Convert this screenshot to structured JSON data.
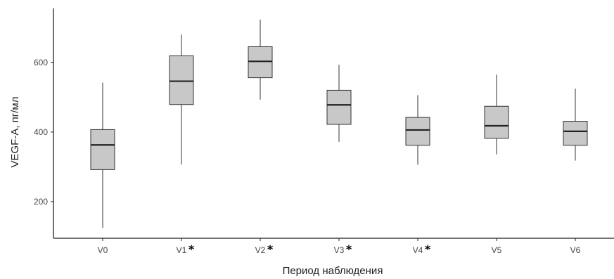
{
  "chart_data": {
    "type": "boxplot",
    "xlabel": "Период наблюдения",
    "ylabel": "VEGF-A, пг/мл",
    "ylim": [
      95,
      755
    ],
    "yticks": [
      200,
      400,
      600
    ],
    "grid": false,
    "box_color": "#c8c8c8",
    "categories": [
      {
        "label": "V0",
        "marker": "",
        "min": 125,
        "q1": 292,
        "median": 363,
        "q3": 407,
        "max": 542
      },
      {
        "label": "V1",
        "marker": "*",
        "min": 307,
        "q1": 479,
        "median": 546,
        "q3": 619,
        "max": 680
      },
      {
        "label": "V2",
        "marker": "*",
        "min": 493,
        "q1": 556,
        "median": 603,
        "q3": 645,
        "max": 723
      },
      {
        "label": "V3",
        "marker": "*",
        "min": 372,
        "q1": 422,
        "median": 478,
        "q3": 520,
        "max": 593
      },
      {
        "label": "V4",
        "marker": "*",
        "min": 306,
        "q1": 362,
        "median": 406,
        "q3": 442,
        "max": 506
      },
      {
        "label": "V5",
        "marker": "",
        "min": 336,
        "q1": 382,
        "median": 418,
        "q3": 474,
        "max": 565
      },
      {
        "label": "V6",
        "marker": "",
        "min": 318,
        "q1": 362,
        "median": 402,
        "q3": 431,
        "max": 525
      }
    ]
  }
}
